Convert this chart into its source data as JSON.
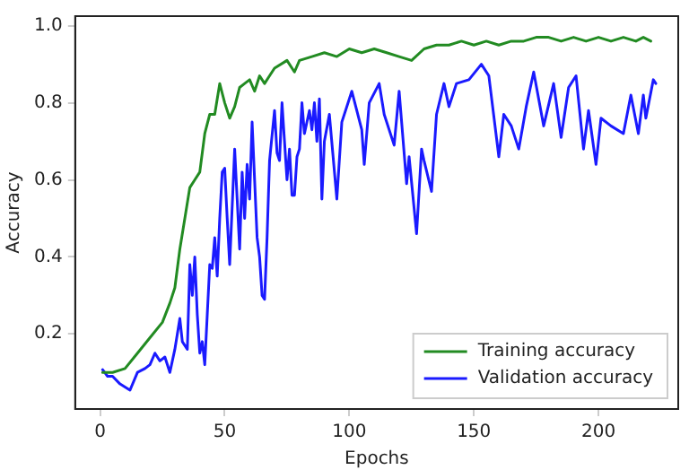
{
  "chart_data": {
    "type": "line",
    "xlabel": "Epochs",
    "ylabel": "Accuracy",
    "xlim": [
      -10,
      232
    ],
    "ylim": [
      0.005,
      1.025
    ],
    "xticks": [
      0,
      50,
      100,
      150,
      200
    ],
    "yticks": [
      {
        "value": 0.2,
        "label": "0.2"
      },
      {
        "value": 0.4,
        "label": "0.4"
      },
      {
        "value": 0.6,
        "label": "0.6"
      },
      {
        "value": 0.8,
        "label": "0.8"
      },
      {
        "value": 1.0,
        "label": "1.0"
      }
    ],
    "grid": false,
    "legend": "bottom right",
    "marker": "none",
    "line_style": "solid",
    "series": [
      {
        "name": "Training accuracy",
        "color": "#228b22",
        "x": [
          1,
          5,
          10,
          15,
          20,
          25,
          28,
          30,
          32,
          34,
          36,
          38,
          40,
          42,
          44,
          46,
          48,
          50,
          52,
          54,
          56,
          58,
          60,
          62,
          64,
          66,
          68,
          70,
          75,
          78,
          80,
          85,
          90,
          95,
          100,
          105,
          110,
          115,
          120,
          125,
          130,
          135,
          140,
          145,
          150,
          155,
          160,
          165,
          170,
          175,
          180,
          185,
          190,
          195,
          200,
          205,
          210,
          215,
          218,
          221
        ],
        "values": [
          0.1,
          0.1,
          0.11,
          0.15,
          0.19,
          0.23,
          0.28,
          0.32,
          0.42,
          0.5,
          0.58,
          0.6,
          0.62,
          0.72,
          0.77,
          0.77,
          0.85,
          0.8,
          0.76,
          0.79,
          0.84,
          0.85,
          0.86,
          0.83,
          0.87,
          0.85,
          0.87,
          0.89,
          0.91,
          0.88,
          0.91,
          0.92,
          0.93,
          0.92,
          0.94,
          0.93,
          0.94,
          0.93,
          0.92,
          0.91,
          0.94,
          0.95,
          0.95,
          0.96,
          0.95,
          0.96,
          0.95,
          0.96,
          0.96,
          0.97,
          0.97,
          0.96,
          0.97,
          0.96,
          0.97,
          0.96,
          0.97,
          0.96,
          0.97,
          0.96
        ]
      },
      {
        "name": "Validation accuracy",
        "color": "#1a1aff",
        "x": [
          1,
          3,
          5,
          8,
          12,
          15,
          18,
          20,
          22,
          24,
          26,
          28,
          30,
          32,
          33,
          35,
          36,
          37,
          38,
          39,
          40,
          41,
          42,
          43,
          44,
          45,
          46,
          47,
          48,
          49,
          50,
          51,
          52,
          54,
          55,
          56,
          57,
          58,
          59,
          60,
          61,
          62,
          63,
          64,
          65,
          66,
          67,
          68,
          70,
          71,
          72,
          73,
          74,
          75,
          76,
          77,
          78,
          79,
          80,
          81,
          82,
          84,
          85,
          86,
          87,
          88,
          89,
          90,
          92,
          95,
          97,
          101,
          105,
          106,
          108,
          112,
          114,
          118,
          120,
          123,
          124,
          127,
          129,
          130,
          133,
          135,
          138,
          140,
          143,
          148,
          153,
          156,
          160,
          162,
          165,
          168,
          171,
          174,
          178,
          182,
          185,
          188,
          191,
          194,
          196,
          199,
          201,
          205,
          210,
          213,
          216,
          218,
          219,
          222,
          223
        ],
        "values": [
          0.107,
          0.09,
          0.09,
          0.07,
          0.054,
          0.1,
          0.11,
          0.12,
          0.15,
          0.13,
          0.14,
          0.1,
          0.16,
          0.24,
          0.18,
          0.16,
          0.38,
          0.3,
          0.4,
          0.25,
          0.15,
          0.18,
          0.12,
          0.25,
          0.38,
          0.37,
          0.45,
          0.35,
          0.5,
          0.62,
          0.63,
          0.5,
          0.38,
          0.68,
          0.55,
          0.42,
          0.62,
          0.5,
          0.64,
          0.55,
          0.75,
          0.6,
          0.45,
          0.4,
          0.3,
          0.29,
          0.45,
          0.65,
          0.78,
          0.67,
          0.65,
          0.8,
          0.7,
          0.6,
          0.68,
          0.56,
          0.56,
          0.66,
          0.68,
          0.8,
          0.72,
          0.78,
          0.73,
          0.8,
          0.7,
          0.81,
          0.55,
          0.7,
          0.77,
          0.55,
          0.75,
          0.83,
          0.73,
          0.64,
          0.8,
          0.85,
          0.77,
          0.69,
          0.83,
          0.59,
          0.66,
          0.46,
          0.68,
          0.65,
          0.57,
          0.77,
          0.85,
          0.79,
          0.85,
          0.86,
          0.9,
          0.87,
          0.66,
          0.77,
          0.74,
          0.68,
          0.79,
          0.88,
          0.74,
          0.85,
          0.71,
          0.84,
          0.87,
          0.68,
          0.78,
          0.64,
          0.76,
          0.74,
          0.72,
          0.82,
          0.72,
          0.82,
          0.76,
          0.86,
          0.85
        ]
      }
    ]
  }
}
